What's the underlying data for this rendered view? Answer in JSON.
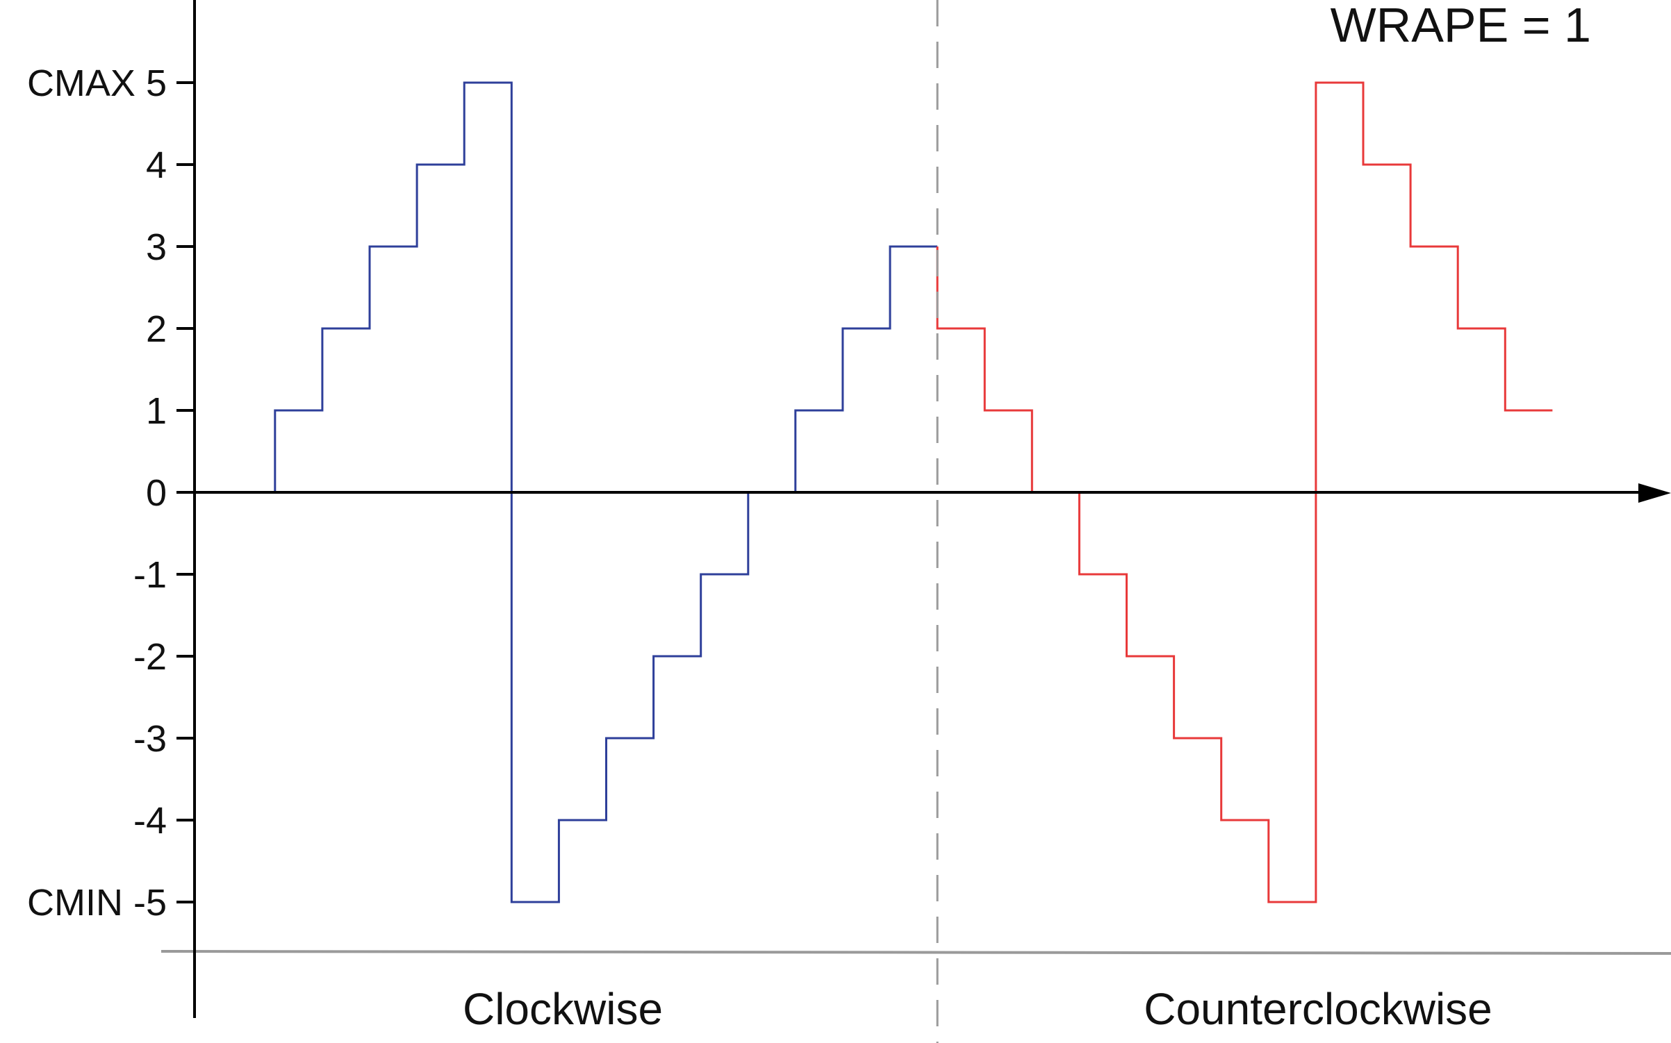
{
  "chart_data": {
    "type": "line",
    "step": true,
    "annotation": "WRAPE = 1",
    "y_ticks": [
      {
        "value": 5,
        "label": "CMAX 5"
      },
      {
        "value": 4,
        "label": "4"
      },
      {
        "value": 3,
        "label": "3"
      },
      {
        "value": 2,
        "label": "2"
      },
      {
        "value": 1,
        "label": "1"
      },
      {
        "value": 0,
        "label": "0"
      },
      {
        "value": -1,
        "label": "-1"
      },
      {
        "value": -2,
        "label": "-2"
      },
      {
        "value": -3,
        "label": "-3"
      },
      {
        "value": -4,
        "label": "-4"
      },
      {
        "value": -5,
        "label": "CMIN -5"
      }
    ],
    "ylim": [
      -5.6,
      6
    ],
    "xlim": [
      0,
      30.5
    ],
    "sections": [
      {
        "label": "Clockwise",
        "x_start": 0,
        "x_end": 15.7
      },
      {
        "label": "Counterclockwise",
        "x_start": 15.7,
        "x_end": 30.5
      }
    ],
    "divider_x": 15.7,
    "series": [
      {
        "color": "#2e3f9a",
        "steps": [
          {
            "x": 1.7,
            "y": 0
          },
          {
            "x": 1.7,
            "y": 1
          },
          {
            "x": 2.7,
            "y": 1
          },
          {
            "x": 2.7,
            "y": 2
          },
          {
            "x": 3.7,
            "y": 2
          },
          {
            "x": 3.7,
            "y": 3
          },
          {
            "x": 4.7,
            "y": 3
          },
          {
            "x": 4.7,
            "y": 4
          },
          {
            "x": 5.7,
            "y": 4
          },
          {
            "x": 5.7,
            "y": 5
          },
          {
            "x": 6.7,
            "y": 5
          },
          {
            "x": 6.7,
            "y": -5
          },
          {
            "x": 7.7,
            "y": -5
          },
          {
            "x": 7.7,
            "y": -4
          },
          {
            "x": 8.7,
            "y": -4
          },
          {
            "x": 8.7,
            "y": -3
          },
          {
            "x": 9.7,
            "y": -3
          },
          {
            "x": 9.7,
            "y": -2
          },
          {
            "x": 10.7,
            "y": -2
          },
          {
            "x": 10.7,
            "y": -1
          },
          {
            "x": 11.7,
            "y": -1
          },
          {
            "x": 11.7,
            "y": 0
          },
          {
            "x": 12.7,
            "y": 0
          },
          {
            "x": 12.7,
            "y": 1
          },
          {
            "x": 13.7,
            "y": 1
          },
          {
            "x": 13.7,
            "y": 2
          },
          {
            "x": 14.7,
            "y": 2
          },
          {
            "x": 14.7,
            "y": 3
          },
          {
            "x": 15.7,
            "y": 3
          }
        ]
      },
      {
        "color": "#e8393a",
        "steps": [
          {
            "x": 15.7,
            "y": 3
          },
          {
            "x": 15.7,
            "y": 2
          },
          {
            "x": 16.7,
            "y": 2
          },
          {
            "x": 16.7,
            "y": 1
          },
          {
            "x": 17.7,
            "y": 1
          },
          {
            "x": 17.7,
            "y": 0
          },
          {
            "x": 18.7,
            "y": 0
          },
          {
            "x": 18.7,
            "y": -1
          },
          {
            "x": 19.7,
            "y": -1
          },
          {
            "x": 19.7,
            "y": -2
          },
          {
            "x": 20.7,
            "y": -2
          },
          {
            "x": 20.7,
            "y": -3
          },
          {
            "x": 21.7,
            "y": -3
          },
          {
            "x": 21.7,
            "y": -4
          },
          {
            "x": 22.7,
            "y": -4
          },
          {
            "x": 22.7,
            "y": -5
          },
          {
            "x": 23.7,
            "y": -5
          },
          {
            "x": 23.7,
            "y": 5
          },
          {
            "x": 24.7,
            "y": 5
          },
          {
            "x": 24.7,
            "y": 4
          },
          {
            "x": 25.7,
            "y": 4
          },
          {
            "x": 25.7,
            "y": 3
          },
          {
            "x": 26.7,
            "y": 3
          },
          {
            "x": 26.7,
            "y": 2
          },
          {
            "x": 27.7,
            "y": 2
          },
          {
            "x": 27.7,
            "y": 1
          },
          {
            "x": 28.7,
            "y": 1
          }
        ]
      }
    ],
    "colors": {
      "axis": "#000000",
      "divider": "#9a9a9a",
      "baseline": "#9a9a9a"
    }
  }
}
